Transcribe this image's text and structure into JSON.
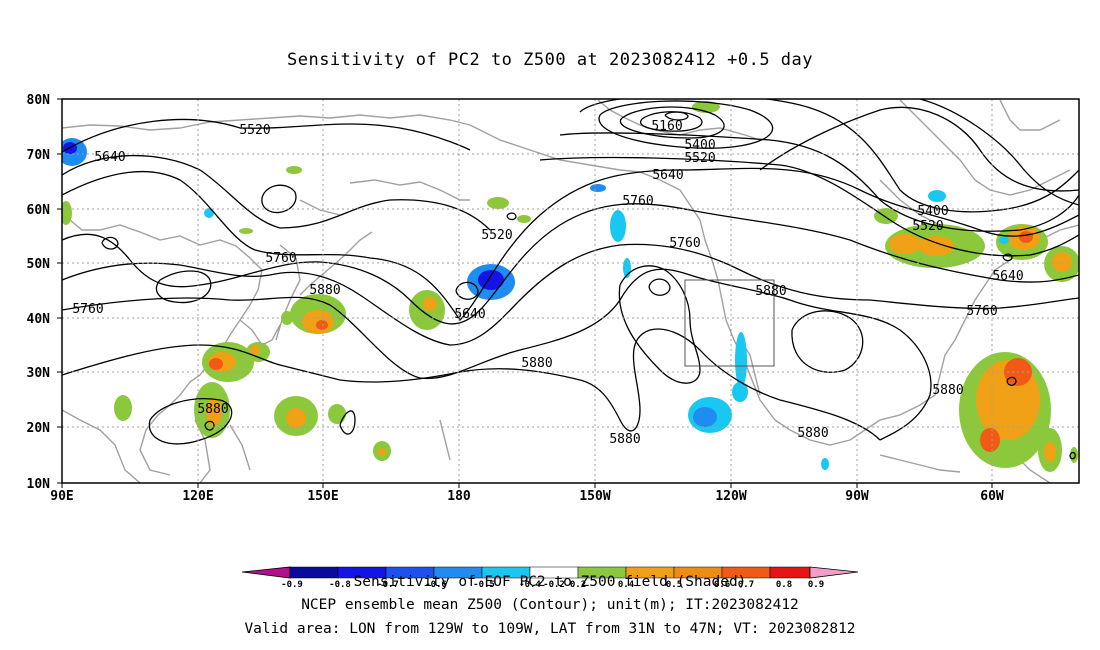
{
  "title": "Sensitivity of PC2 to Z500 at 2023082412 +0.5 day",
  "axes": {
    "lat_labels": [
      "80N",
      "70N",
      "60N",
      "50N",
      "40N",
      "30N",
      "20N",
      "10N"
    ],
    "lon_labels": [
      "90E",
      "120E",
      "150E",
      "180",
      "150W",
      "120W",
      "90W",
      "60W"
    ]
  },
  "contour_labels": [
    "5520",
    "5640",
    "5160",
    "5400",
    "5520",
    "5640",
    "5760",
    "5400",
    "5520",
    "5520",
    "5760",
    "5880",
    "5760",
    "5640",
    "5760",
    "5880",
    "5640",
    "5880",
    "5880",
    "5880",
    "5880",
    "5880",
    "5760"
  ],
  "colorbar": {
    "title": "Sensitivity of EOF PC2 to Z500 field (Shaded)",
    "ticks": [
      "-0.9",
      "-0.8",
      "-0.7",
      "-0.6",
      "-0.5",
      "-0.4",
      "-0.2",
      "0.2",
      "0.4",
      "0.5",
      "0.6",
      "0.7",
      "0.8",
      "0.9"
    ],
    "colors": [
      "#b0108c",
      "#0a0a9c",
      "#1414e6",
      "#1e50f0",
      "#1e8cf0",
      "#18c8f0",
      "#ffffff",
      "#8cc83c",
      "#f0a014",
      "#f08c14",
      "#f05a14",
      "#e61414"
    ]
  },
  "footer": {
    "line1": "NCEP ensemble mean Z500 (Contour); unit(m); IT:2023082412",
    "line2": "Valid area: LON from 129W to 109W, LAT from 31N to 47N; VT: 2023082812"
  },
  "valid_area": {
    "lon_from": "129W",
    "lon_to": "109W",
    "lat_from": "31N",
    "lat_to": "47N"
  },
  "colors": {
    "green": "#8cc83c",
    "orange": "#f0a014",
    "deep_orange": "#f05a14",
    "red": "#e61414",
    "cyan": "#18c8f0",
    "blue": "#1e8cf0",
    "dark_blue": "#1414e6",
    "coast": "#a0a0a0",
    "grid": "#a0a0a0"
  }
}
